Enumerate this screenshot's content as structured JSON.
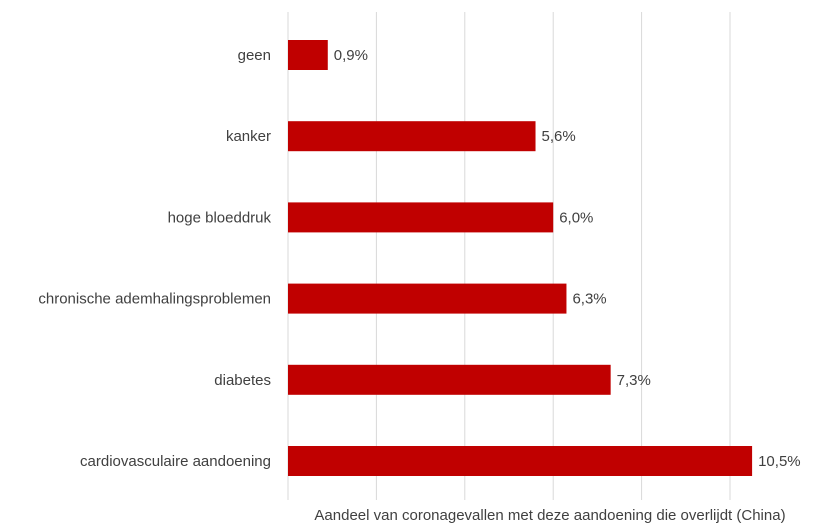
{
  "chart_data": {
    "type": "bar",
    "orientation": "horizontal",
    "categories": [
      "geen",
      "kanker",
      "hoge bloeddruk",
      "chronische ademhalingsproblemen",
      "diabetes",
      "cardiovasculaire aandoening"
    ],
    "values": [
      0.9,
      5.6,
      6.0,
      6.3,
      7.3,
      10.5
    ],
    "value_labels": [
      "0,9%",
      "5,6%",
      "6,0%",
      "6,3%",
      "7,3%",
      "10,5%"
    ],
    "xlabel": "Aandeel van coronagevallen met deze aandoening die overlijdt (China)",
    "xlim": [
      0,
      12
    ],
    "grid": true,
    "bar_color": "#C00000",
    "grid_color": "#D9D9D9",
    "text_color": "#404040"
  }
}
